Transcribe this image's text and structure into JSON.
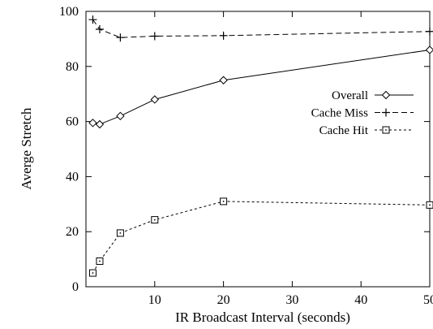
{
  "chart_data": {
    "type": "line",
    "xlabel": "IR Broadcast Interval (seconds)",
    "ylabel": "Averge Stretch",
    "xlim": [
      0,
      50
    ],
    "ylim": [
      0,
      100
    ],
    "xticks": [
      10,
      20,
      30,
      40,
      50
    ],
    "yticks": [
      0,
      20,
      40,
      60,
      80,
      100
    ],
    "grid": false,
    "legend_position": "right",
    "series": [
      {
        "name": "Overall",
        "marker": "diamond",
        "line": "solid",
        "x": [
          1,
          2,
          5,
          10,
          20,
          50
        ],
        "y": [
          59.5,
          59,
          62,
          68,
          75,
          86
        ]
      },
      {
        "name": "Cache Miss",
        "marker": "plus",
        "line": "dash",
        "x": [
          1,
          2,
          5,
          10,
          20,
          50
        ],
        "y": [
          97,
          93.5,
          90.5,
          91,
          91.2,
          92.7
        ]
      },
      {
        "name": "Cache Hit",
        "marker": "square",
        "line": "dot",
        "x": [
          1,
          2,
          5,
          10,
          20,
          50
        ],
        "y": [
          5,
          9.3,
          19.5,
          24.3,
          31,
          29.7
        ]
      }
    ]
  }
}
